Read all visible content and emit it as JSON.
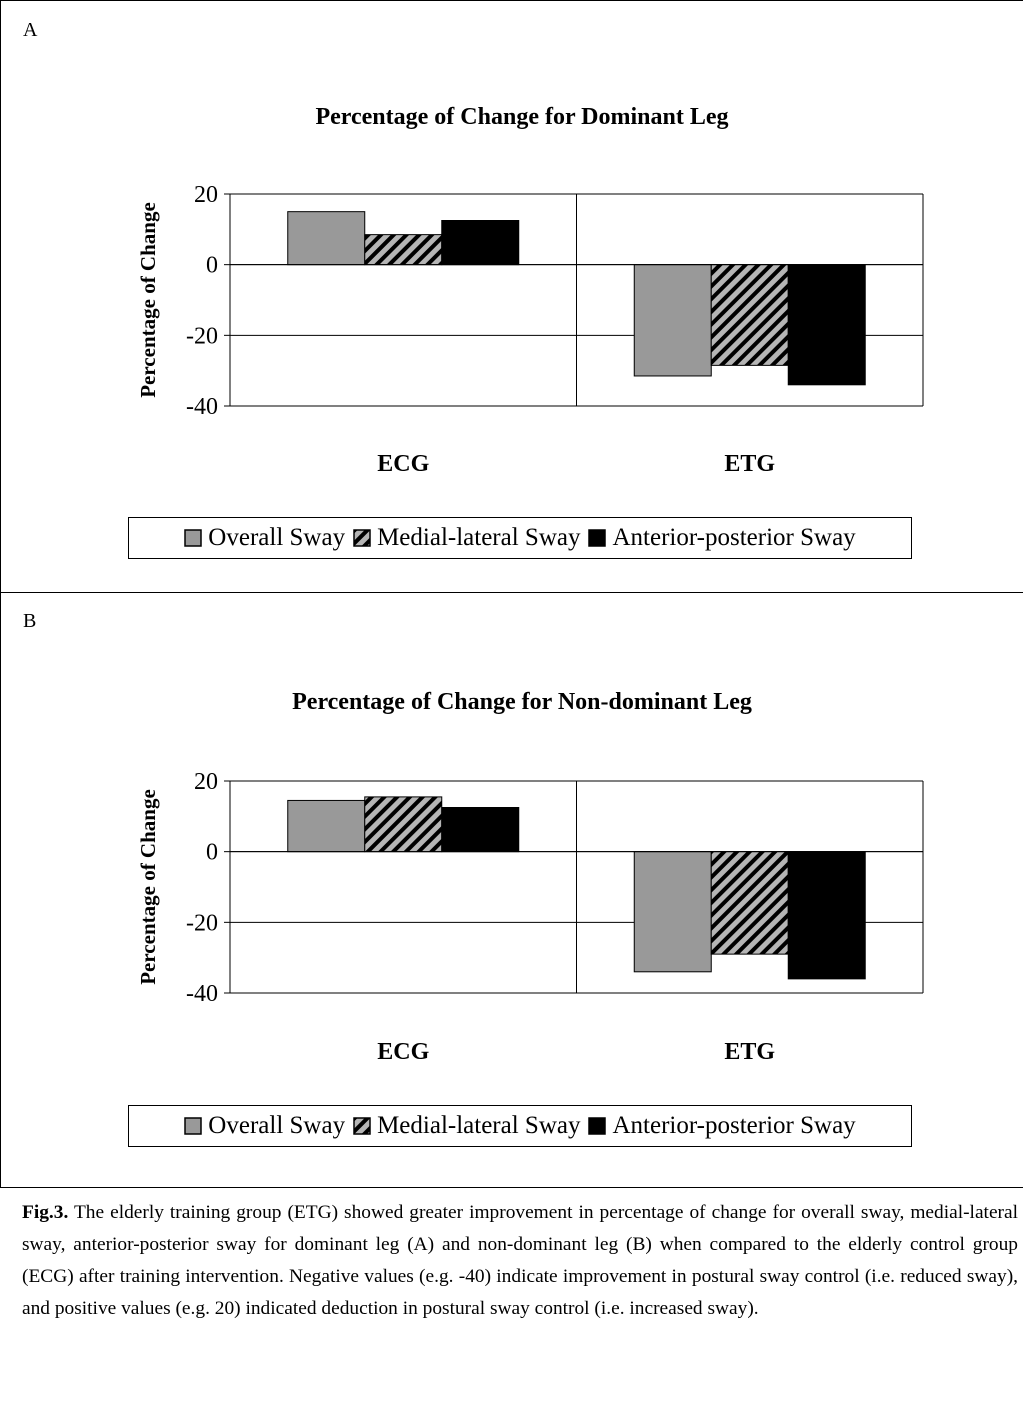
{
  "figure": {
    "caption_label": "Fig.3.",
    "caption_text": " The elderly training group (ETG) showed greater improvement in percentage of change for overall sway, medial-lateral sway, anterior-posterior sway for dominant leg (A) and non-dominant leg (B) when compared to the elderly control group (ECG) after training intervention. Negative values (e.g. -40) indicate improvement in postural sway control (i.e. reduced sway), and positive values (e.g. 20) indicated deduction in postural sway control (i.e. increased sway)."
  },
  "chart_data": [
    {
      "panel": "A",
      "type": "bar",
      "title": "Percentage of Change for Dominant Leg",
      "ylabel": "Percentage of Change",
      "xlabel": "",
      "categories": [
        "ECG",
        "ETG"
      ],
      "ylim": [
        -40,
        20
      ],
      "yticks": [
        20,
        0,
        -20,
        -40
      ],
      "grid": true,
      "legend_position": "bottom",
      "series": [
        {
          "name": "Overall Sway",
          "values": [
            15,
            -31.5
          ],
          "fill": "#999999",
          "pattern": "solid"
        },
        {
          "name": "Medial-lateral Sway",
          "values": [
            8.5,
            -28.5
          ],
          "fill": "#999999",
          "pattern": "diagonal-stripes"
        },
        {
          "name": "Anterior-posterior Sway",
          "values": [
            12.5,
            -34
          ],
          "fill": "#000000",
          "pattern": "solid"
        }
      ]
    },
    {
      "panel": "B",
      "type": "bar",
      "title": "Percentage of Change for Non-dominant Leg",
      "ylabel": "Percentage of Change",
      "xlabel": "",
      "categories": [
        "ECG",
        "ETG"
      ],
      "ylim": [
        -40,
        20
      ],
      "yticks": [
        20,
        0,
        -20,
        -40
      ],
      "grid": true,
      "legend_position": "bottom",
      "series": [
        {
          "name": "Overall Sway",
          "values": [
            14.5,
            -34
          ],
          "fill": "#999999",
          "pattern": "solid"
        },
        {
          "name": "Medial-lateral Sway",
          "values": [
            15.5,
            -29
          ],
          "fill": "#999999",
          "pattern": "diagonal-stripes"
        },
        {
          "name": "Anterior-posterior Sway",
          "values": [
            12.5,
            -36
          ],
          "fill": "#000000",
          "pattern": "solid"
        }
      ]
    }
  ]
}
